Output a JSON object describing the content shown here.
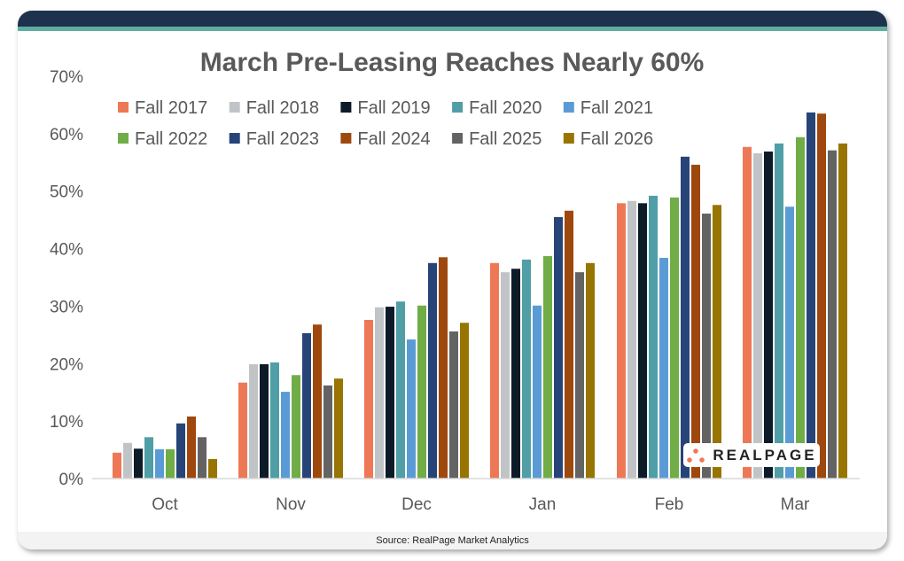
{
  "footer": {
    "source": "Source: RealPage Market Analytics"
  },
  "logo": {
    "text": "REALPAGE"
  },
  "chart_data": {
    "type": "bar",
    "title": "March Pre-Leasing Reaches Nearly 60%",
    "xlabel": "",
    "ylabel": "",
    "ylim": [
      0,
      70
    ],
    "yticks": [
      "0%",
      "10%",
      "20%",
      "30%",
      "40%",
      "50%",
      "60%",
      "70%"
    ],
    "grid": false,
    "legend_position": "top-left",
    "categories": [
      "Oct",
      "Nov",
      "Dec",
      "Jan",
      "Feb",
      "Mar"
    ],
    "series": [
      {
        "name": "Fall 2017",
        "color": "#ee7855",
        "values": [
          4.5,
          16.7,
          27.6,
          37.5,
          47.9,
          57.7
        ]
      },
      {
        "name": "Fall 2018",
        "color": "#c1c4c6",
        "values": [
          6.2,
          19.9,
          29.8,
          35.9,
          48.3,
          56.6
        ]
      },
      {
        "name": "Fall 2019",
        "color": "#0d1b28",
        "values": [
          5.2,
          19.9,
          29.9,
          36.5,
          47.9,
          56.9
        ]
      },
      {
        "name": "Fall 2020",
        "color": "#509ea6",
        "values": [
          7.2,
          20.2,
          30.8,
          38.1,
          49.2,
          58.3
        ]
      },
      {
        "name": "Fall 2021",
        "color": "#5b9bd5",
        "values": [
          5.1,
          15.1,
          24.2,
          30.1,
          38.4,
          47.3
        ]
      },
      {
        "name": "Fall 2022",
        "color": "#70ad47",
        "values": [
          5.1,
          18.0,
          30.1,
          38.7,
          48.9,
          59.4
        ]
      },
      {
        "name": "Fall 2023",
        "color": "#264478",
        "values": [
          9.6,
          25.3,
          37.5,
          45.5,
          56.0,
          63.7
        ]
      },
      {
        "name": "Fall 2024",
        "color": "#9e480e",
        "values": [
          10.8,
          26.8,
          38.5,
          46.6,
          54.6,
          63.5
        ]
      },
      {
        "name": "Fall 2025",
        "color": "#636363",
        "values": [
          7.2,
          16.2,
          25.6,
          35.9,
          46.1,
          57.1
        ]
      },
      {
        "name": "Fall 2026",
        "color": "#977500",
        "values": [
          3.4,
          17.4,
          27.1,
          37.5,
          47.6,
          58.3
        ]
      }
    ]
  }
}
